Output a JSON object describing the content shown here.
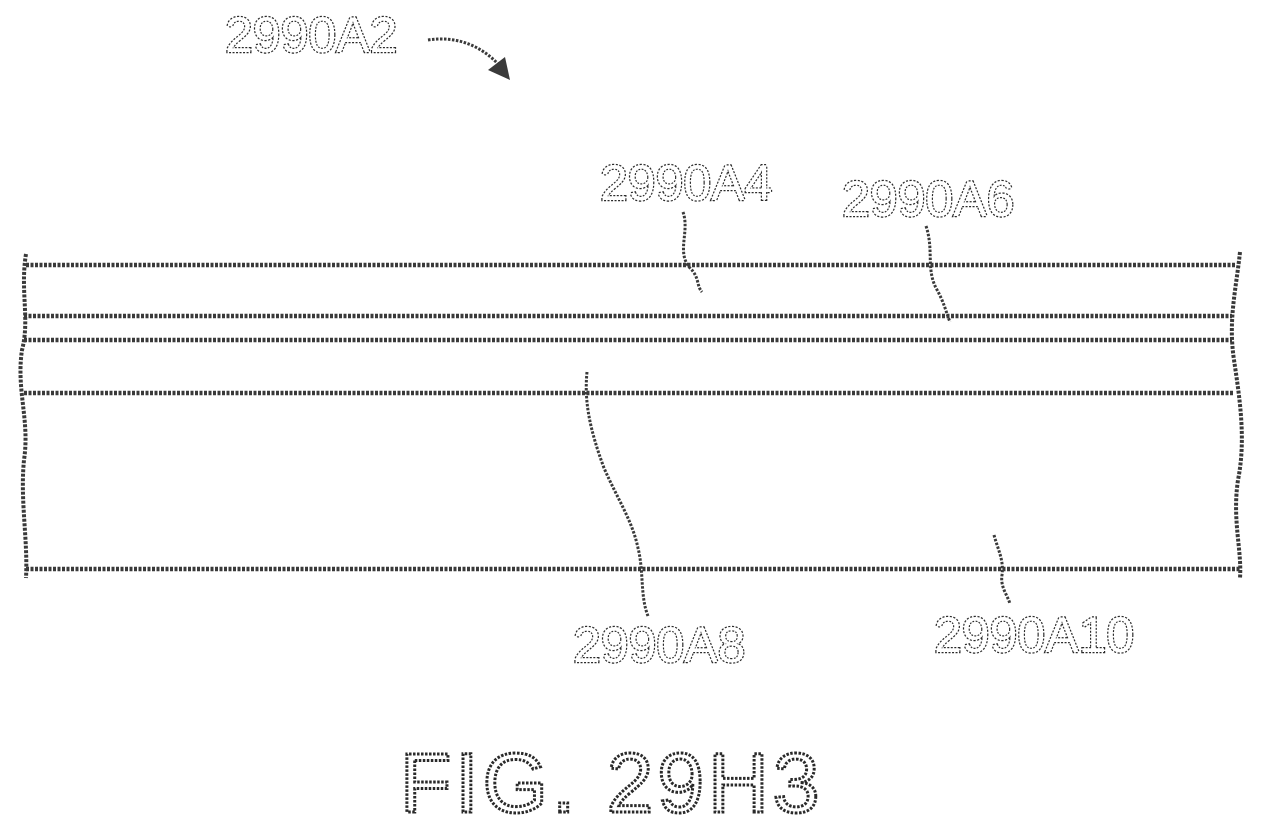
{
  "figure": {
    "caption": "FIG. 29H3",
    "assembly_label": "2990A2",
    "labels": {
      "a4": "2990A4",
      "a6": "2990A6",
      "a8": "2990A8",
      "a10": "2990A10"
    }
  }
}
